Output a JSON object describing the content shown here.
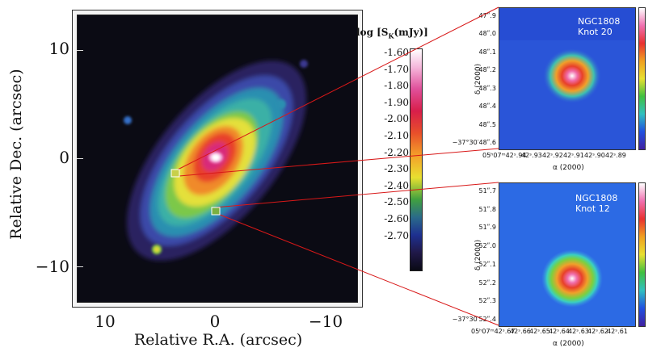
{
  "left_plot": {
    "x_axis_title": "Relative R.A. (arcsec)",
    "y_axis_title": "Relative Dec. (arcsec)",
    "x_ticks": [
      "10",
      "0",
      "−10"
    ],
    "y_ticks": [
      "10",
      "0",
      "−10"
    ],
    "colorbar_title": "log [S",
    "colorbar_sub": "K",
    "colorbar_title_end": "(mJy)]",
    "colorbar_ticks": [
      "-1.60",
      "-1.70",
      "-1.80",
      "-1.90",
      "-2.00",
      "-2.10",
      "-2.20",
      "-2.30",
      "-2.40",
      "-2.50",
      "-2.60",
      "-2.70"
    ]
  },
  "panel_top": {
    "name": "NGC1808",
    "knot": "Knot 20",
    "dec_ticks": [
      "47ʺ.9",
      "48ʺ.0",
      "48ʺ.1",
      "48ʺ.2",
      "48ʺ.3",
      "48ʺ.4",
      "48ʺ.5",
      "−37°30′48ʺ.6"
    ],
    "ra_ticks": [
      "05ʰ07ᵐ42ˢ.94",
      "42ˢ.93",
      "42ˢ.92",
      "42ˢ.91",
      "42ˢ.90",
      "42ˢ.89"
    ],
    "x_label": "α (2000)",
    "y_label": "δ (2000)"
  },
  "panel_bottom": {
    "name": "NGC1808",
    "knot": "Knot 12",
    "dec_ticks": [
      "51ʺ.7",
      "51ʺ.8",
      "51ʺ.9",
      "52ʺ.0",
      "52ʺ.1",
      "52ʺ.2",
      "52ʺ.3",
      "−37°30′52ʺ.4"
    ],
    "ra_ticks": [
      "05ʰ07ᵐ42ˢ.67",
      "42ˢ.66",
      "42ˢ.65",
      "42ˢ.64",
      "42ˢ.63",
      "42ˢ.62",
      "42ˢ.61"
    ],
    "x_label": "α (2000)",
    "y_label": "δ (2000)"
  }
}
